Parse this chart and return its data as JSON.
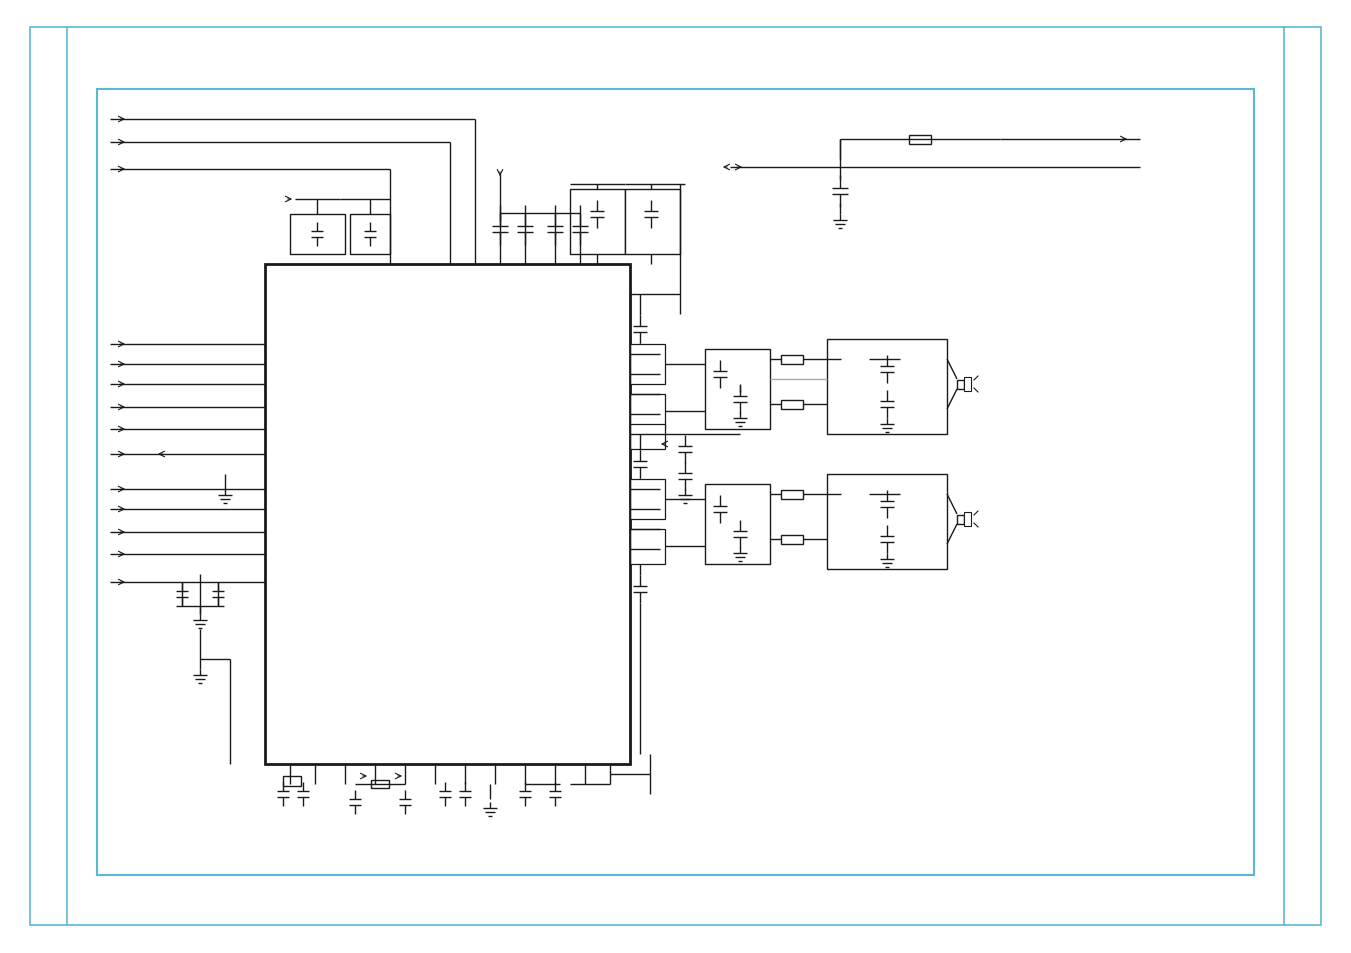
{
  "bg": "#ffffff",
  "lc": "#1a1a1a",
  "cyan": "#5bb8d4",
  "gray": "#aaaaaa",
  "figsize": [
    13.51,
    9.54
  ],
  "dpi": 100
}
